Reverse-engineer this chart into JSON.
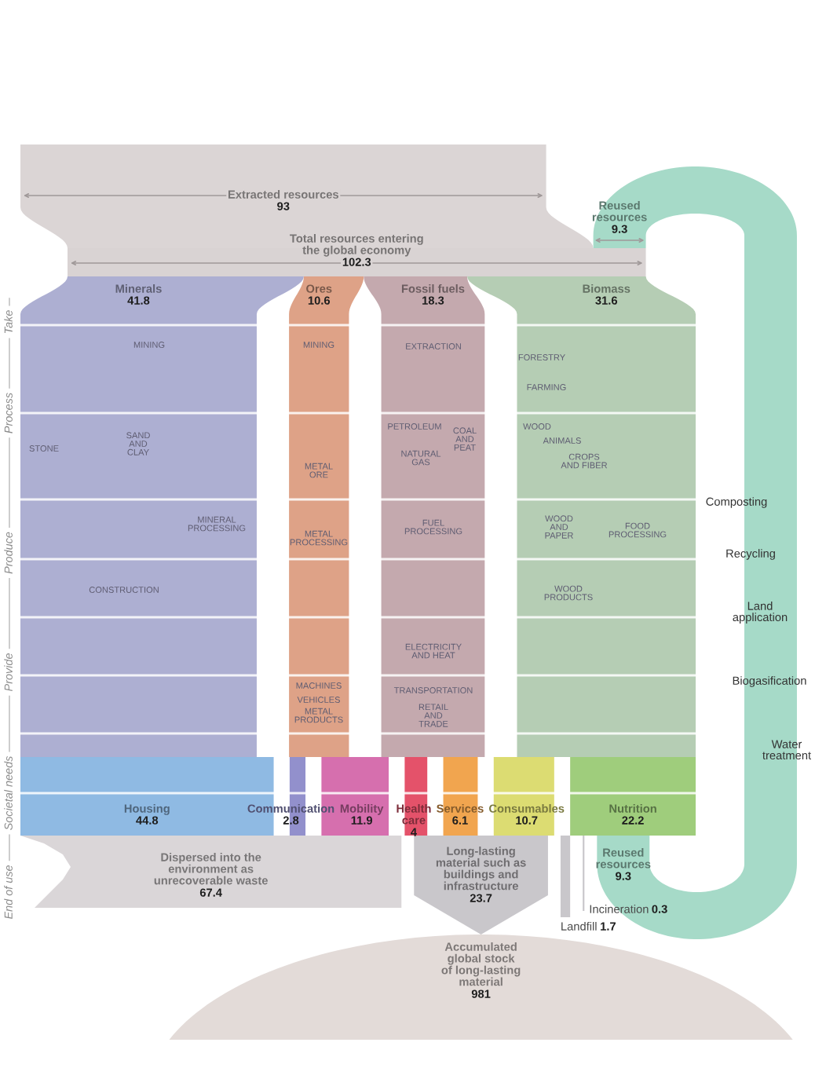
{
  "chart_data": {
    "type": "other",
    "categories": [
      "Extracted resources",
      "Reused resources",
      "Total resources entering the global economy",
      "Minerals",
      "Ores",
      "Fossil fuels",
      "Biomass",
      "Housing",
      "Communication",
      "Mobility",
      "Health care",
      "Services",
      "Consumables",
      "Nutrition",
      "Dispersed into the environment as unrecoverable waste",
      "Long-lasting material such as buildings and infrastructure",
      "Reused resources",
      "Incineration",
      "Landfill",
      "Accumulated global stock of long-lasting material"
    ],
    "values": [
      93,
      9.3,
      102.3,
      41.8,
      10.6,
      18.3,
      31.6,
      44.8,
      2.8,
      11.9,
      4,
      6.1,
      10.7,
      22.2,
      67.4,
      23.7,
      9.3,
      0.3,
      1.7,
      981
    ],
    "colors": [
      "#dbd5d5",
      "#a6dac8",
      "#d9d3d3",
      "#adafd2",
      "#dea287",
      "#c4a9ae",
      "#b5cdb4",
      "#8fbae3",
      "#9290cc",
      "#d66fae",
      "#e4526a",
      "#f1a54f",
      "#dcdc72",
      "#9fcd7c",
      "#dad6d8",
      "#c9c7cb",
      "#a6dac8",
      "#c9c7cb",
      "#c9c7cb",
      "#e3dbd8"
    ],
    "data_labels": true,
    "annotations": [
      "Take",
      "Process",
      "Produce",
      "Provide",
      "Societal needs",
      "End of use",
      "MINING",
      "STONE",
      "SAND AND CLAY",
      "MINERAL PROCESSING",
      "CONSTRUCTION",
      "MINING",
      "METAL ORE",
      "METAL PROCESSING",
      "MACHINES",
      "VEHICLES",
      "METAL PRODUCTS",
      "EXTRACTION",
      "PETROLEUM",
      "NATURAL GAS",
      "COAL AND PEAT",
      "FUEL PROCESSING",
      "ELECTRICITY AND HEAT",
      "TRANSPORTATION",
      "RETAIL AND TRADE",
      "FORESTRY",
      "FARMING",
      "WOOD",
      "ANIMALS",
      "CROPS AND FIBER",
      "WOOD AND PAPER",
      "WOOD PRODUCTS",
      "FOOD PROCESSING",
      "Composting",
      "Recycling",
      "Land application",
      "Biogasification",
      "Water treatment"
    ]
  }
}
